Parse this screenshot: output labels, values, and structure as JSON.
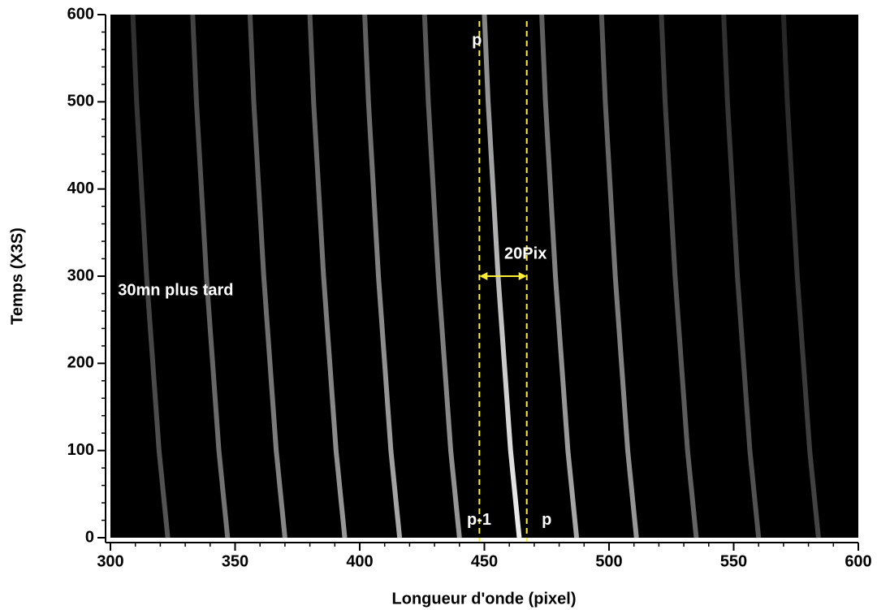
{
  "chart_data": {
    "type": "image-traces",
    "xlabel": "Longueur d'onde (pixel)",
    "ylabel": "Temps (X3S)",
    "xlim": [
      300,
      600
    ],
    "ylim": [
      0,
      600
    ],
    "xticks": [
      300,
      350,
      400,
      450,
      500,
      550,
      600
    ],
    "yticks": [
      0,
      100,
      200,
      300,
      400,
      500,
      600
    ],
    "xminorticks": [
      310,
      320,
      330,
      340,
      360,
      370,
      380,
      390,
      410,
      420,
      430,
      440,
      460,
      470,
      480,
      490,
      510,
      520,
      530,
      540,
      560,
      570,
      580,
      590
    ],
    "yminorticks": [
      20,
      40,
      60,
      80,
      120,
      140,
      160,
      180,
      220,
      240,
      260,
      280,
      320,
      340,
      360,
      380,
      420,
      440,
      460,
      480,
      520,
      540,
      560,
      580
    ],
    "background": "#000000",
    "y": [
      0,
      100,
      200,
      300,
      400,
      500,
      600
    ],
    "series": [
      {
        "color": "#555555",
        "x": [
          323,
          319.5,
          317,
          314.5,
          312.5,
          310.5,
          309
        ]
      },
      {
        "color": "#777777",
        "x": [
          347,
          343.5,
          341,
          338.5,
          336.5,
          334.5,
          333
        ]
      },
      {
        "color": "#888888",
        "x": [
          370,
          366.5,
          364,
          361.5,
          359.5,
          357.5,
          356
        ]
      },
      {
        "color": "#999999",
        "x": [
          394,
          390.5,
          388,
          385.5,
          383.5,
          381.5,
          380
        ]
      },
      {
        "color": "#aaaaaa",
        "x": [
          416,
          412.5,
          410,
          407.5,
          405.5,
          403.5,
          402
        ]
      },
      {
        "color": "#999999",
        "x": [
          440,
          436.5,
          434,
          431.5,
          429.5,
          427.5,
          426
        ]
      },
      {
        "color": "#eeeeee",
        "x": [
          464,
          460.5,
          458,
          455.5,
          453.5,
          451.5,
          450
        ]
      },
      {
        "color": "#aaaaaa",
        "x": [
          487,
          483.5,
          481,
          478.5,
          476.5,
          474.5,
          473
        ]
      },
      {
        "color": "#999999",
        "x": [
          511,
          507.5,
          505,
          502.5,
          500.5,
          498.5,
          497
        ]
      },
      {
        "color": "#666666",
        "x": [
          535,
          531.5,
          529,
          526.5,
          524.5,
          522.5,
          521
        ]
      },
      {
        "color": "#555555",
        "x": [
          560,
          556.5,
          554,
          551.5,
          549.5,
          547.5,
          546
        ]
      },
      {
        "color": "#444444",
        "x": [
          584,
          580.5,
          578,
          575.5,
          573.5,
          571.5,
          570
        ]
      }
    ],
    "vlines": [
      448,
      467
    ],
    "vline_color": "#ffee33",
    "arrow": {
      "x": [
        448,
        467
      ],
      "y": 300
    },
    "annotations": [
      {
        "text": "p",
        "x": 445,
        "y": 570
      },
      {
        "text": "p-1",
        "x": 443,
        "y": 20
      },
      {
        "text": "p",
        "x": 473,
        "y": 20
      },
      {
        "text": "20Pix",
        "x": 458,
        "y": 325
      },
      {
        "text": "30mn plus tard",
        "x": 303,
        "y": 283
      }
    ]
  }
}
